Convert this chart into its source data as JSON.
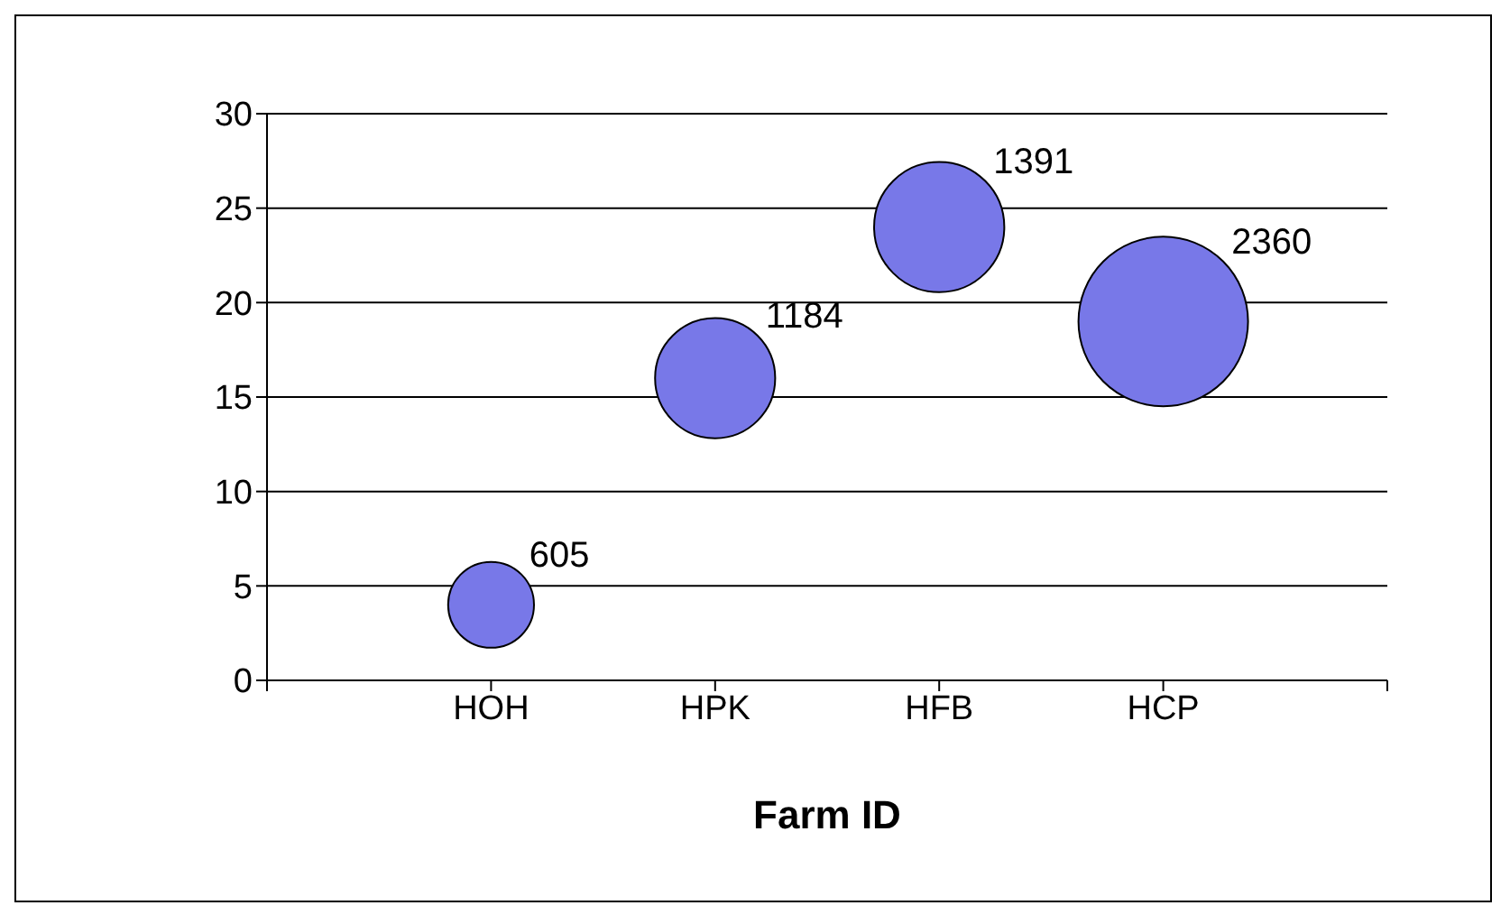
{
  "chart_data": {
    "type": "bubble",
    "xlabel": "Farm ID",
    "categories": [
      "HOH",
      "HPK",
      "HFB",
      "HCP"
    ],
    "values": [
      4,
      16,
      24,
      19
    ],
    "sizes": [
      605,
      1184,
      1391,
      2360
    ],
    "value_labels": [
      "605",
      "1184",
      "1391",
      "2360"
    ],
    "color": "#7878e8",
    "ylim": [
      0,
      30
    ],
    "yticks": [
      0,
      5,
      10,
      15,
      20,
      25,
      30
    ],
    "grid": "y"
  }
}
